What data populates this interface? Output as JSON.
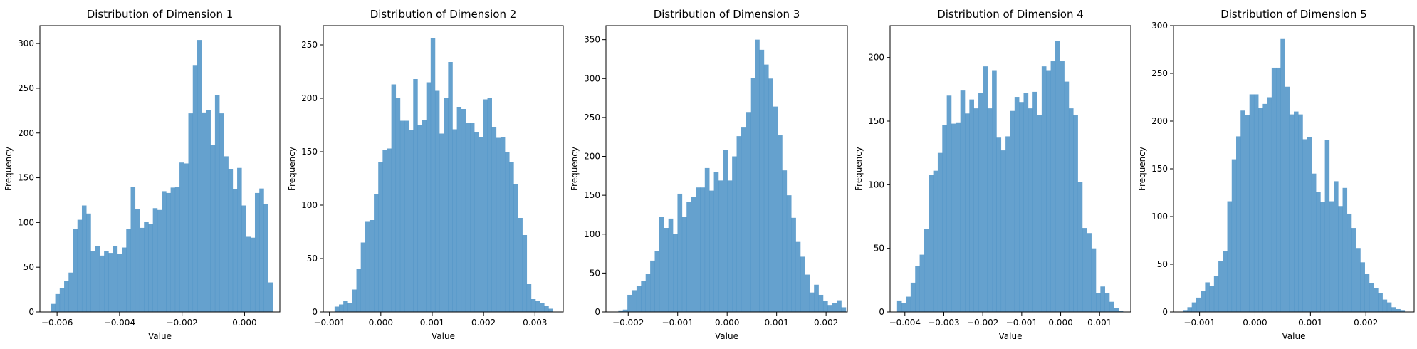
{
  "chart_data": [
    {
      "type": "histogram",
      "title": "Distribution of Dimension 1",
      "xlabel": "Value",
      "ylabel": "Frequency",
      "xlim": [
        -0.00655,
        0.00113
      ],
      "ylim": [
        0,
        320
      ],
      "xticks": [
        -0.006,
        -0.004,
        -0.002,
        0.0
      ],
      "xtick_labels": [
        "−0.006",
        "−0.004",
        "−0.002",
        "0.000"
      ],
      "yticks": [
        0,
        50,
        100,
        150,
        200,
        250,
        300
      ],
      "bins": {
        "start": -0.0062,
        "end": 0.0009,
        "count": 50
      },
      "values": [
        9,
        20,
        27,
        35,
        44,
        93,
        103,
        119,
        110,
        68,
        74,
        63,
        68,
        66,
        74,
        65,
        72,
        93,
        140,
        115,
        94,
        101,
        98,
        116,
        114,
        135,
        133,
        139,
        140,
        167,
        166,
        222,
        276,
        304,
        223,
        226,
        187,
        242,
        222,
        174,
        160,
        137,
        161,
        119,
        84,
        83,
        133,
        138,
        121,
        33
      ],
      "color": "#3a86c0",
      "opacity": 0.78,
      "grid": false
    },
    {
      "type": "histogram",
      "title": "Distribution of Dimension 2",
      "xlabel": "Value",
      "ylabel": "Frequency",
      "xlim": [
        -0.00112,
        0.00355
      ],
      "ylim": [
        0,
        268
      ],
      "xticks": [
        -0.001,
        0.0,
        0.001,
        0.002,
        0.003
      ],
      "xtick_labels": [
        "−0.001",
        "0.000",
        "0.001",
        "0.002",
        "0.003"
      ],
      "yticks": [
        0,
        50,
        100,
        150,
        200,
        250
      ],
      "bins": {
        "start": -0.0009,
        "end": 0.00335,
        "count": 50
      },
      "values": [
        5,
        7,
        10,
        8,
        21,
        40,
        65,
        85,
        86,
        110,
        140,
        152,
        153,
        213,
        200,
        179,
        179,
        170,
        218,
        175,
        180,
        215,
        256,
        207,
        167,
        200,
        234,
        171,
        192,
        190,
        177,
        177,
        168,
        164,
        199,
        200,
        173,
        163,
        164,
        150,
        140,
        120,
        88,
        72,
        26,
        12,
        10,
        8,
        6,
        3
      ],
      "color": "#3a86c0",
      "opacity": 0.78,
      "grid": false
    },
    {
      "type": "histogram",
      "title": "Distribution of Dimension 3",
      "xlabel": "Value",
      "ylabel": "Frequency",
      "xlim": [
        -0.00245,
        0.00243
      ],
      "ylim": [
        0,
        368
      ],
      "xticks": [
        -0.002,
        -0.001,
        0.0,
        0.001,
        0.002
      ],
      "xtick_labels": [
        "−0.002",
        "−0.001",
        "0.000",
        "0.001",
        "0.002"
      ],
      "yticks": [
        0,
        50,
        100,
        150,
        200,
        250,
        300,
        350
      ],
      "bins": {
        "start": -0.0022,
        "end": 0.0024,
        "count": 50
      },
      "values": [
        2,
        3,
        22,
        28,
        33,
        40,
        49,
        66,
        78,
        122,
        108,
        120,
        100,
        152,
        122,
        141,
        148,
        160,
        160,
        185,
        156,
        180,
        169,
        208,
        169,
        200,
        226,
        237,
        257,
        301,
        350,
        337,
        318,
        300,
        264,
        227,
        182,
        150,
        121,
        90,
        71,
        48,
        25,
        35,
        22,
        14,
        9,
        11,
        15,
        6
      ],
      "color": "#3a86c0",
      "opacity": 0.78,
      "grid": false
    },
    {
      "type": "histogram",
      "title": "Distribution of Dimension 4",
      "xlabel": "Value",
      "ylabel": "Frequency",
      "xlim": [
        -0.00438,
        0.0018
      ],
      "ylim": [
        0,
        225
      ],
      "xticks": [
        -0.004,
        -0.003,
        -0.002,
        -0.001,
        0.0,
        0.001
      ],
      "xtick_labels": [
        "−0.004",
        "−0.003",
        "−0.002",
        "−0.001",
        "0.000",
        "0.001"
      ],
      "yticks": [
        0,
        50,
        100,
        150,
        200
      ],
      "bins": {
        "start": -0.0042,
        "end": 0.0016,
        "count": 50
      },
      "values": [
        9,
        7,
        12,
        23,
        36,
        45,
        65,
        108,
        111,
        125,
        147,
        170,
        148,
        149,
        174,
        156,
        167,
        160,
        172,
        193,
        160,
        190,
        137,
        127,
        138,
        158,
        169,
        165,
        172,
        160,
        173,
        155,
        193,
        190,
        197,
        213,
        197,
        181,
        160,
        155,
        102,
        66,
        62,
        50,
        15,
        20,
        15,
        8,
        3,
        1
      ],
      "color": "#3a86c0",
      "opacity": 0.78,
      "grid": false
    },
    {
      "type": "histogram",
      "title": "Distribution of Dimension 5",
      "xlabel": "Value",
      "ylabel": "Frequency",
      "xlim": [
        -0.00147,
        0.00287
      ],
      "ylim": [
        0,
        300
      ],
      "xticks": [
        -0.001,
        0.0,
        0.001,
        0.002
      ],
      "xtick_labels": [
        "−0.001",
        "0.000",
        "0.001",
        "0.002"
      ],
      "yticks": [
        0,
        50,
        100,
        150,
        200,
        250,
        300
      ],
      "bins": {
        "start": -0.0013,
        "end": 0.0027,
        "count": 50
      },
      "values": [
        2,
        5,
        10,
        15,
        22,
        31,
        27,
        38,
        53,
        64,
        116,
        160,
        184,
        211,
        206,
        228,
        228,
        214,
        218,
        225,
        256,
        256,
        286,
        236,
        207,
        210,
        207,
        181,
        183,
        145,
        126,
        115,
        180,
        116,
        137,
        111,
        130,
        103,
        88,
        67,
        52,
        40,
        30,
        25,
        20,
        13,
        10,
        5,
        3,
        2
      ],
      "color": "#3a86c0",
      "opacity": 0.78,
      "grid": false
    }
  ]
}
